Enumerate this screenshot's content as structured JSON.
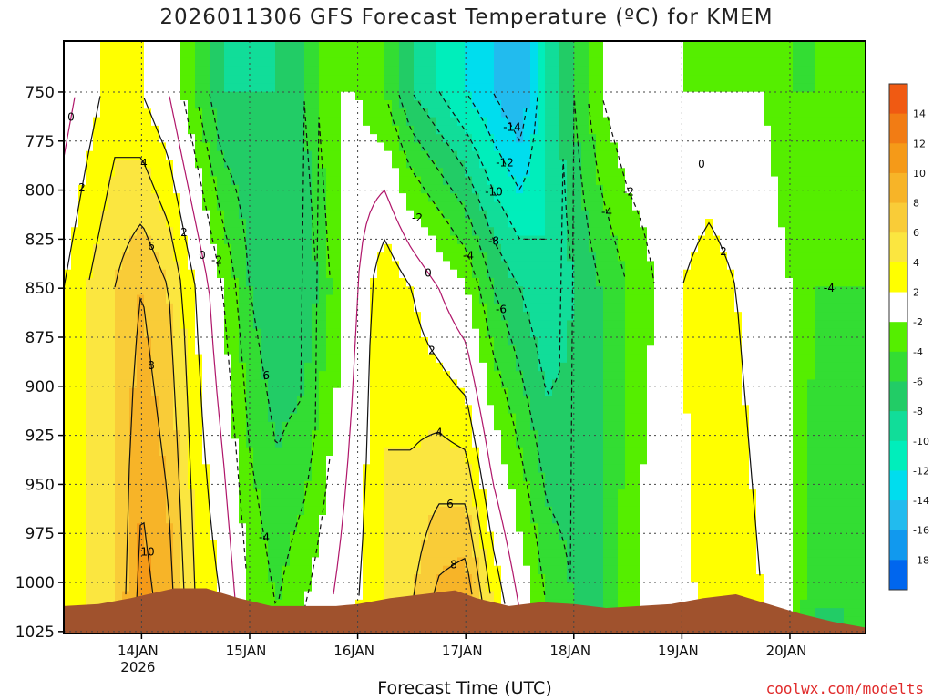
{
  "title": "2026011306 GFS Forecast Temperature (ºC) for KMEM",
  "xlabel": "Forecast Time (UTC)",
  "credit": "coolwx.com/modelts",
  "chart_data": {
    "type": "heatmap",
    "title": "2026011306 GFS Forecast Temperature (ºC) for KMEM",
    "xlabel": "Forecast Time (UTC)",
    "ylabel": "",
    "x_ticks": [
      "14JAN\n2026",
      "15JAN",
      "16JAN",
      "17JAN",
      "18JAN",
      "19JAN",
      "20JAN"
    ],
    "y_ticks": [
      750,
      775,
      800,
      825,
      850,
      875,
      900,
      925,
      950,
      975,
      1000,
      1025
    ],
    "y_range_hPa": [
      724,
      1026
    ],
    "x_range_days_from_14JAN00": [
      -0.72,
      6.7
    ],
    "colorbar": {
      "labels": [
        14,
        12,
        10,
        8,
        6,
        4,
        2,
        -2,
        -4,
        -6,
        -8,
        -10,
        -12,
        -14,
        -16,
        -18
      ],
      "colors": [
        "#f05a12",
        "#f27c14",
        "#f59a18",
        "#f7b428",
        "#f9cc38",
        "#fbe640",
        "#ffff00",
        "#ffffff",
        "#55ee00",
        "#33dd33",
        "#22cc66",
        "#11dd99",
        "#00eebb",
        "#00ddee",
        "#22bbee",
        "#1199ee",
        "#0066ee"
      ]
    },
    "time_series": {
      "days": [
        -0.72,
        -0.5,
        -0.25,
        0,
        0.25,
        0.5,
        0.75,
        1,
        1.25,
        1.5,
        1.75,
        2,
        2.25,
        2.5,
        2.75,
        3,
        3.25,
        3.5,
        3.75,
        4,
        4.25,
        4.5,
        4.75,
        5,
        5.25,
        5.5,
        5.75,
        6,
        6.25,
        6.5,
        6.7
      ],
      "surface_temp_C": [
        3,
        4,
        6,
        11,
        9,
        4,
        2,
        -2,
        -4,
        -2,
        0,
        2,
        4,
        6,
        9,
        10,
        4,
        0,
        -4,
        -6,
        -6,
        -3,
        0,
        1,
        3,
        4,
        2,
        -2,
        -6,
        -6,
        -4
      ],
      "temp_850_C": [
        2,
        4,
        6,
        8,
        6,
        2,
        -2,
        -6,
        -8,
        -8,
        -4,
        0,
        4,
        2,
        0,
        -2,
        -6,
        -8,
        -10,
        -8,
        -6,
        -4,
        -2,
        2,
        4,
        2,
        0,
        -2,
        -4,
        -4,
        -4
      ],
      "temp_750_C": [
        -1,
        1,
        3,
        2,
        0,
        -4,
        -8,
        -8,
        -8,
        -6,
        -2,
        -2,
        -4,
        -8,
        -10,
        -12,
        -14,
        -16,
        -10,
        -6,
        -2,
        0,
        0,
        -2,
        -2,
        -2,
        -2,
        -4,
        -4,
        -2,
        -2
      ]
    }
  }
}
